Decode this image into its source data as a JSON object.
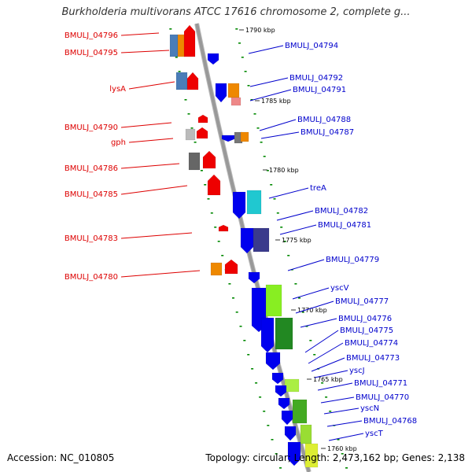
{
  "title": "Burkholderia multivorans ATCC 17616 chromosome 2, complete g...",
  "footer": {
    "accession": "Accession: NC_010805",
    "summary": "Topology: circular; Length: 2,473,162 bp; Genes: 2,138"
  },
  "colors": {
    "minus_strand_label": "#dd0000",
    "plus_strand_label": "#0000cc",
    "backbone": "#999999",
    "tick": "#008800"
  },
  "kbp_marks": [
    "1790 kbp",
    "1785 kbp",
    "1780 kbp",
    "1775 kbp",
    "1770 kbp",
    "1765 kbp",
    "1760 kbp"
  ],
  "labels_left": [
    "BMULJ_04796",
    "BMULJ_04795",
    "lysA",
    "BMULJ_04790",
    "gph",
    "BMULJ_04786",
    "BMULJ_04785",
    "BMULJ_04783",
    "BMULJ_04780"
  ],
  "labels_right": [
    "BMULJ_04794",
    "BMULJ_04792",
    "BMULJ_04791",
    "BMULJ_04788",
    "BMULJ_04787",
    "treA",
    "BMULJ_04782",
    "BMULJ_04781",
    "BMULJ_04779",
    "yscV",
    "BMULJ_04777",
    "BMULJ_04776",
    "BMULJ_04775",
    "BMULJ_04774",
    "BMULJ_04773",
    "yscJ",
    "BMULJ_04771",
    "BMULJ_04770",
    "yscN",
    "BMULJ_04768",
    "yscT"
  ]
}
